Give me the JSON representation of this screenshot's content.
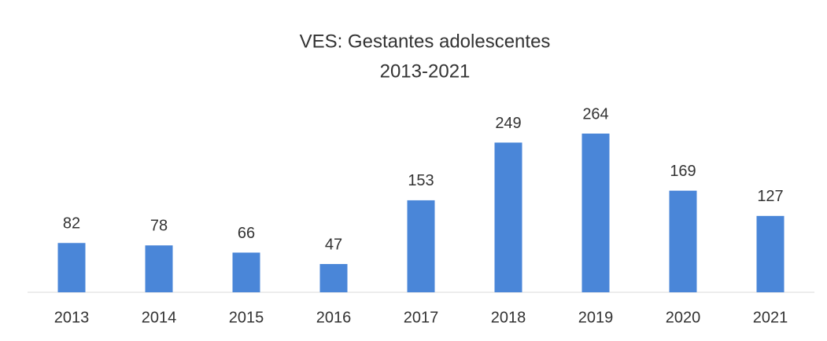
{
  "chart_data": {
    "type": "bar",
    "title": "VES: Gestantes adolescentes",
    "subtitle": "2013-2021",
    "categories": [
      "2013",
      "2014",
      "2015",
      "2016",
      "2017",
      "2018",
      "2019",
      "2020",
      "2021"
    ],
    "values": [
      82,
      78,
      66,
      47,
      153,
      249,
      264,
      169,
      127
    ],
    "color": "#4a86d8"
  }
}
